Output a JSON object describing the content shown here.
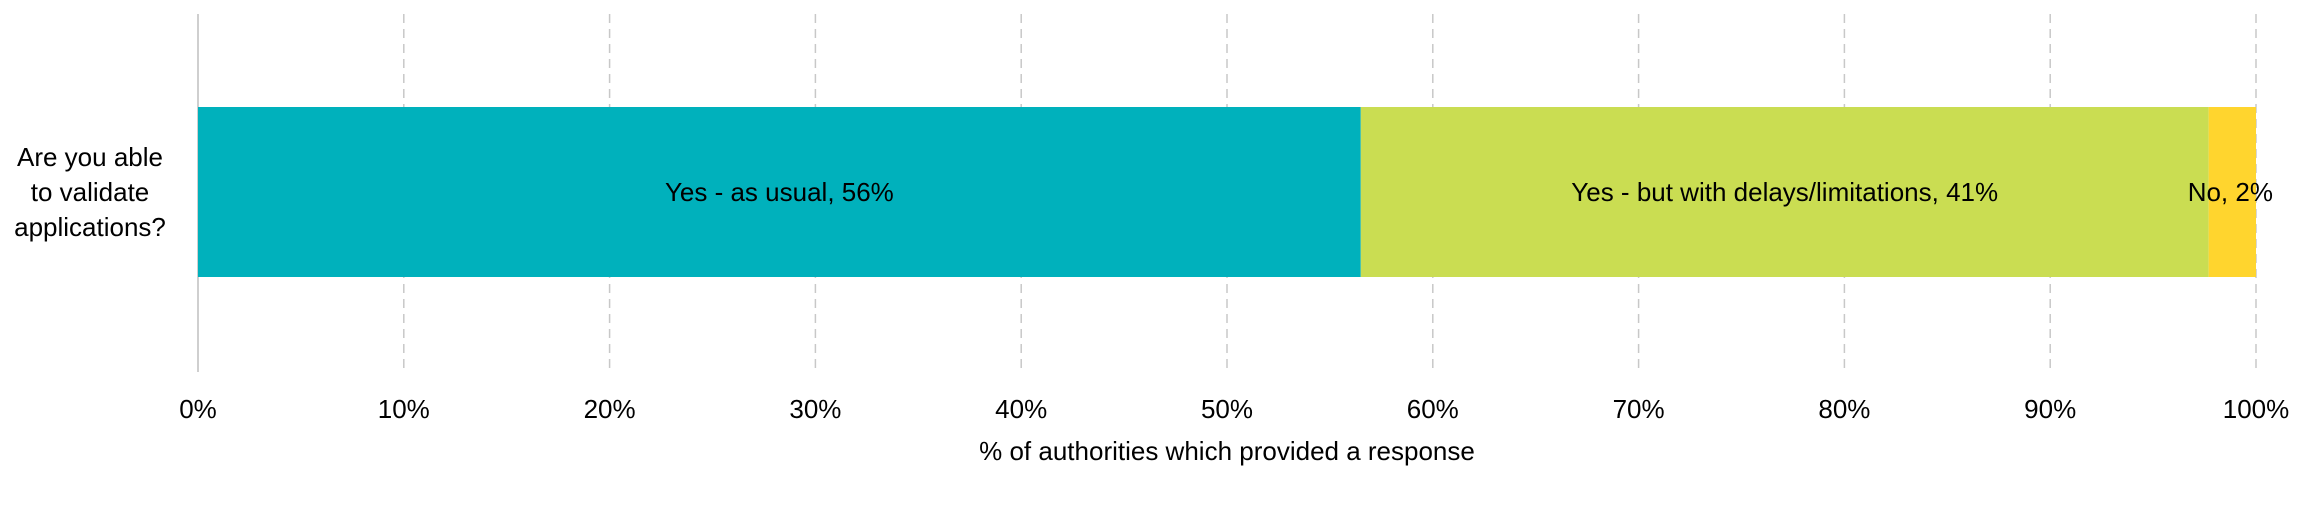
{
  "chart_data": {
    "type": "bar",
    "orientation": "horizontal",
    "stacked": true,
    "categories": [
      "Are you able to validate applications?"
    ],
    "category_lines": [
      "Are you able",
      "to validate",
      "applications?"
    ],
    "series": [
      {
        "value": 56.5,
        "label": "Yes - as usual, 56%",
        "color": "#00B1BC"
      },
      {
        "value": 41.2,
        "label": "Yes - but with delays/limitations, 41%",
        "color": "#CADD52"
      },
      {
        "value": 2.3,
        "label": "No, 2%",
        "color": "#FFD52E"
      }
    ],
    "xlabel": "% of authorities which provided a response",
    "xlim": [
      0,
      100
    ],
    "xticks": [
      0,
      10,
      20,
      30,
      40,
      50,
      60,
      70,
      80,
      90,
      100
    ],
    "xtick_labels": [
      "0%",
      "10%",
      "20%",
      "30%",
      "40%",
      "50%",
      "60%",
      "70%",
      "80%",
      "90%",
      "100%"
    ],
    "grid": true,
    "grid_style": "dashed vertical",
    "legend": "none"
  }
}
